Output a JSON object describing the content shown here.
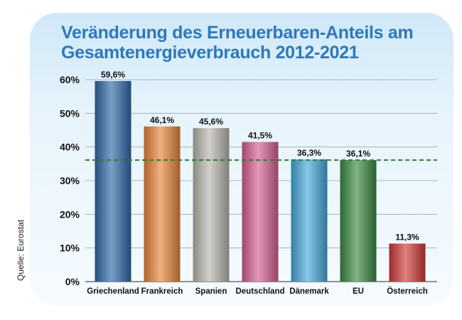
{
  "source_label": "Quelle: Eurostat",
  "chart_data": {
    "type": "bar",
    "title": "Veränderung des Erneuerbaren-Anteils am Gesamtenergieverbrauch 2012-2021",
    "xlabel": "",
    "ylabel": "",
    "ylim": [
      0,
      60
    ],
    "yticks": [
      0,
      10,
      20,
      30,
      40,
      50,
      60
    ],
    "ytick_labels": [
      "0%",
      "10%",
      "20%",
      "30%",
      "40%",
      "50%",
      "60%"
    ],
    "grid": true,
    "categories": [
      "Griechenland",
      "Frankreich",
      "Spanien",
      "Deutschland",
      "Dänemark",
      "EU",
      "Österreich"
    ],
    "values": [
      59.6,
      46.1,
      45.6,
      41.5,
      36.3,
      36.1,
      11.3
    ],
    "value_labels": [
      "59,6%",
      "46,1%",
      "45,6%",
      "41,5%",
      "36,3%",
      "36,1%",
      "11,3%"
    ],
    "reference_line": {
      "value": 36.1,
      "style": "dashed"
    },
    "colors": [
      "#2f6aa8",
      "#e8853a",
      "#b8b6ad",
      "#d65f92",
      "#46a9dc",
      "#3c8a44",
      "#d03a3a"
    ],
    "reference_color": "#2e7d2e"
  }
}
